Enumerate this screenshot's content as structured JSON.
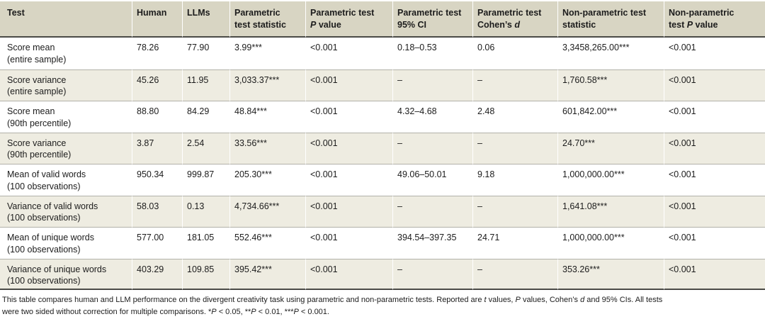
{
  "colors": {
    "header-bg": "#d8d5c3",
    "stripe-bg": "#eeece1",
    "dark-rule": "#4b4b47",
    "light-rule": "#b2b1a9",
    "text": "#1c1c1c"
  },
  "table": {
    "columns": [
      {
        "name": "test",
        "label_segments": [
          {
            "t": "Test"
          }
        ]
      },
      {
        "name": "human",
        "label_segments": [
          {
            "t": "Human"
          }
        ]
      },
      {
        "name": "llms",
        "label_segments": [
          {
            "t": "LLMs"
          }
        ]
      },
      {
        "name": "parametric-test-statistic",
        "label_segments": [
          {
            "t": "Parametric"
          },
          {
            "br": true
          },
          {
            "t": "test statistic"
          }
        ]
      },
      {
        "name": "parametric-test-p-value",
        "label_segments": [
          {
            "t": "Parametric test"
          },
          {
            "br": true
          },
          {
            "t": "P",
            "i": true
          },
          {
            "t": " value"
          }
        ]
      },
      {
        "name": "parametric-test-95-ci",
        "label_segments": [
          {
            "t": "Parametric test"
          },
          {
            "br": true
          },
          {
            "t": "95% CI"
          }
        ]
      },
      {
        "name": "parametric-test-cohens-d",
        "label_segments": [
          {
            "t": "Parametric test"
          },
          {
            "br": true
          },
          {
            "t": "Cohen’s "
          },
          {
            "t": "d",
            "i": true
          }
        ]
      },
      {
        "name": "non-parametric-test-statistic",
        "label_segments": [
          {
            "t": "Non-parametric test"
          },
          {
            "br": true
          },
          {
            "t": "statistic"
          }
        ]
      },
      {
        "name": "non-parametric-test-p-value",
        "label_segments": [
          {
            "t": "Non-parametric"
          },
          {
            "br": true
          },
          {
            "t": "test "
          },
          {
            "t": "P",
            "i": true
          },
          {
            "t": " value"
          }
        ]
      }
    ],
    "rows": [
      {
        "test": "Score mean",
        "sample": "(entire sample)",
        "human": "78.26",
        "llms": "77.90",
        "param_stat": "3.99***",
        "param_p": "<0.001",
        "ci": "0.18–0.53",
        "cohens_d": "0.06",
        "nonparam_stat": "3,3458,265.00***",
        "nonparam_p": "<0.001"
      },
      {
        "test": "Score variance",
        "sample": "(entire sample)",
        "human": "45.26",
        "llms": "11.95",
        "param_stat": "3,033.37***",
        "param_p": "<0.001",
        "ci": "–",
        "cohens_d": "–",
        "nonparam_stat": "1,760.58***",
        "nonparam_p": "<0.001"
      },
      {
        "test": "Score mean",
        "sample": "(90th percentile)",
        "human": "88.80",
        "llms": "84.29",
        "param_stat": "48.84***",
        "param_p": "<0.001",
        "ci": "4.32–4.68",
        "cohens_d": "2.48",
        "nonparam_stat": "601,842.00***",
        "nonparam_p": "<0.001"
      },
      {
        "test": "Score variance",
        "sample": "(90th percentile)",
        "human": "3.87",
        "llms": "2.54",
        "param_stat": "33.56***",
        "param_p": "<0.001",
        "ci": "–",
        "cohens_d": "–",
        "nonparam_stat": "24.70***",
        "nonparam_p": "<0.001"
      },
      {
        "test": "Mean of valid words",
        "sample": "(100 observations)",
        "human": "950.34",
        "llms": "999.87",
        "param_stat": "205.30***",
        "param_p": "<0.001",
        "ci": "49.06–50.01",
        "cohens_d": "9.18",
        "nonparam_stat": "1,000,000.00***",
        "nonparam_p": "<0.001"
      },
      {
        "test": "Variance of valid words",
        "sample": "(100 observations)",
        "human": "58.03",
        "llms": "0.13",
        "param_stat": "4,734.66***",
        "param_p": "<0.001",
        "ci": "–",
        "cohens_d": "–",
        "nonparam_stat": "1,641.08***",
        "nonparam_p": "<0.001"
      },
      {
        "test": "Mean of unique words",
        "sample": "(100 observations)",
        "human": "577.00",
        "llms": "181.05",
        "param_stat": "552.46***",
        "param_p": "<0.001",
        "ci": "394.54–397.35",
        "cohens_d": "24.71",
        "nonparam_stat": "1,000,000.00***",
        "nonparam_p": "<0.001"
      },
      {
        "test": "Variance of unique words",
        "sample": "(100 observations)",
        "human": "403.29",
        "llms": "109.85",
        "param_stat": "395.42***",
        "param_p": "<0.001",
        "ci": "–",
        "cohens_d": "–",
        "nonparam_stat": "353.26***",
        "nonparam_p": "<0.001"
      }
    ],
    "footnote_lines": [
      [
        {
          "t": "This table compares human and LLM performance on the divergent creativity task using parametric and non-parametric tests. Reported are "
        },
        {
          "t": "t",
          "i": true
        },
        {
          "t": " values, "
        },
        {
          "t": "P",
          "i": true
        },
        {
          "t": " values, Cohen’s "
        },
        {
          "t": "d",
          "i": true
        },
        {
          "t": " and 95% CIs. All tests"
        }
      ],
      [
        {
          "t": "were two sided without correction for multiple comparisons. *"
        },
        {
          "t": "P",
          "i": true
        },
        {
          "t": " < 0.05, **"
        },
        {
          "t": "P",
          "i": true
        },
        {
          "t": " < 0.01, ***"
        },
        {
          "t": "P",
          "i": true
        },
        {
          "t": " < 0.001."
        }
      ]
    ]
  }
}
